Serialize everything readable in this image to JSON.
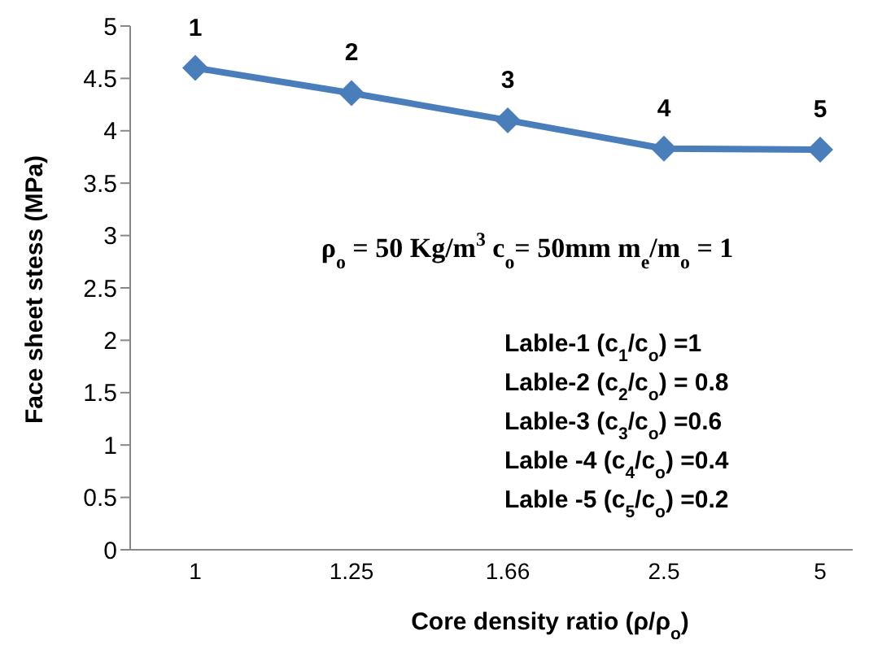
{
  "chart_data": {
    "type": "line",
    "xlabel": "Core density ratio (ρ/ρ$_{o}$)",
    "ylabel": "Face sheet stess (MPa)",
    "categories": [
      "1",
      "1.25",
      "1.66",
      "2.5",
      "5"
    ],
    "series": [
      {
        "color": "#4a7ebb",
        "values": [
          4.6,
          4.36,
          4.1,
          3.83,
          3.82
        ]
      }
    ],
    "ylim": [
      0,
      5
    ],
    "yticks": [
      0,
      0.5,
      1,
      1.5,
      2,
      2.5,
      3,
      3.5,
      4,
      4.5,
      5
    ],
    "marker": "diamond",
    "grid": false,
    "legend": false,
    "annotations": [
      {
        "text": "1",
        "x": "1",
        "y": 4.6
      },
      {
        "text": "2",
        "x": "1.25",
        "y": 4.36
      },
      {
        "text": "3",
        "x": "1.66",
        "y": 4.1
      },
      {
        "text": "4",
        "x": "2.5",
        "y": 3.83
      },
      {
        "text": "5",
        "x": "5",
        "y": 3.82
      },
      "ρ$_{o}$ = 50 Kg/m$^{3}$  c$_{o}$= 50mm  m$_{e}$/m$_{o}$ = 1",
      "Lable-1 (c$_{1}$/c$_{o}$)  =1",
      "Lable-2 (c$_{2}$/c$_{o}$)  = 0.8",
      "Lable-3 (c$_{3}$/c$_{o}$)  =0.6",
      "Lable -4 (c$_{4}$/c$_{o}$) =0.4",
      "Lable -5 (c$_{5}$/c$_{o}$) =0.2"
    ]
  }
}
